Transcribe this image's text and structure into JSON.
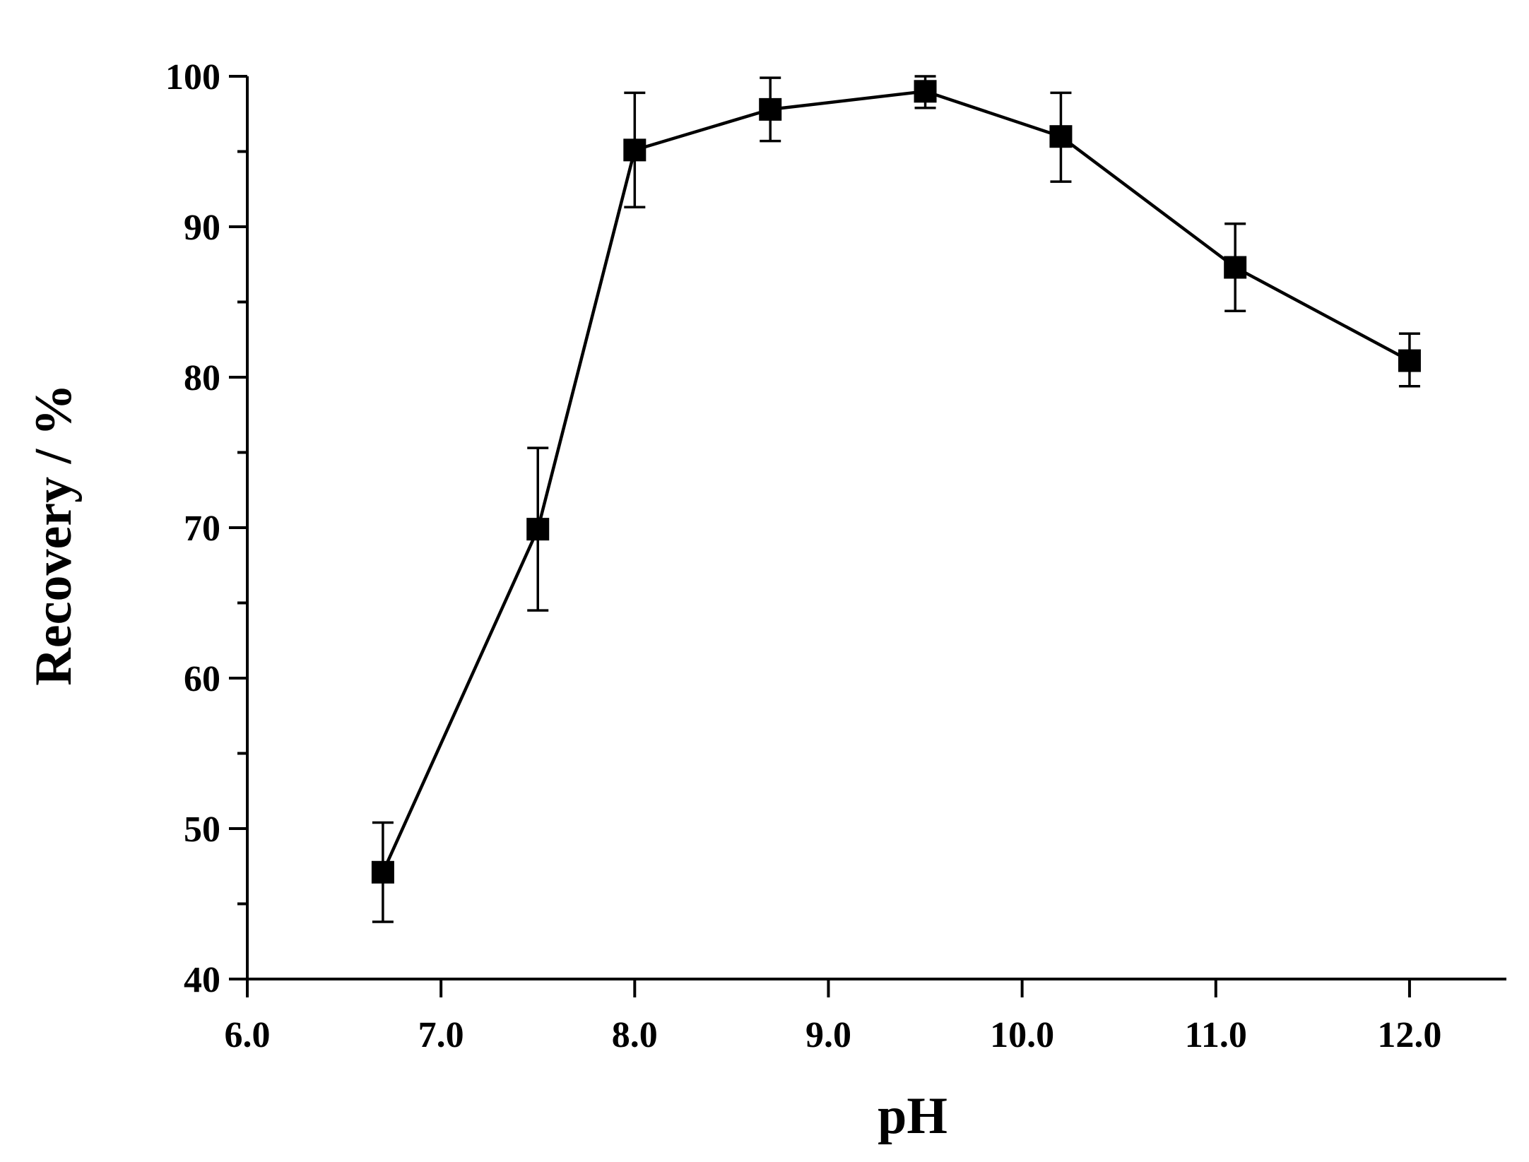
{
  "chart_data": {
    "type": "line",
    "title": "",
    "xlabel": "pH",
    "ylabel": "Recovery / %",
    "xlim": [
      6.0,
      12.5
    ],
    "ylim": [
      40,
      100
    ],
    "xticks": [
      6.0,
      7.0,
      8.0,
      9.0,
      10.0,
      11.0,
      12.0
    ],
    "xtick_labels": [
      "6.0",
      "7.0",
      "8.0",
      "9.0",
      "10.0",
      "11.0",
      "12.0"
    ],
    "yticks": [
      40,
      50,
      60,
      70,
      80,
      90,
      100
    ],
    "ytick_labels": [
      "40",
      "50",
      "60",
      "70",
      "80",
      "90",
      "100"
    ],
    "yminor_step": 5,
    "xminor": false,
    "grid": false,
    "legend": "none",
    "series": [
      {
        "name": "Recovery",
        "marker": "square",
        "color": "#000000",
        "x": [
          6.7,
          7.5,
          8.0,
          8.7,
          9.5,
          10.2,
          11.1,
          12.0
        ],
        "y": [
          47.1,
          69.9,
          95.1,
          97.8,
          99.0,
          96.0,
          87.3,
          81.1
        ],
        "yerr_upper": [
          50.4,
          75.3,
          98.9,
          99.9,
          100.0,
          98.9,
          90.2,
          82.9
        ],
        "yerr_lower": [
          43.8,
          64.5,
          91.3,
          95.7,
          97.9,
          93.0,
          84.4,
          79.4
        ]
      }
    ]
  }
}
